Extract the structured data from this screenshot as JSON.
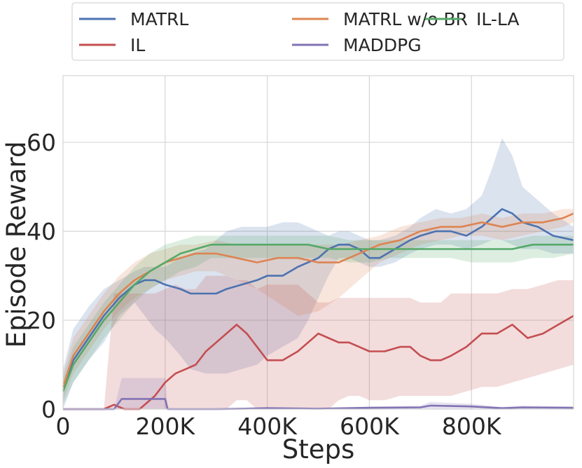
{
  "chart_data": {
    "type": "line",
    "title": "",
    "xlabel": "Steps",
    "ylabel": "Episode Reward",
    "xlim": [
      0,
      1000000
    ],
    "ylim": [
      0,
      75
    ],
    "xticks": [
      0,
      200000,
      400000,
      600000,
      800000
    ],
    "xtick_labels": [
      "0",
      "200K",
      "400K",
      "600K",
      "800K"
    ],
    "yticks": [
      0,
      20,
      40,
      60
    ],
    "ytick_labels": [
      "0",
      "20",
      "40",
      "60"
    ],
    "grid": true,
    "legend_position": "top-center",
    "series": [
      {
        "name": "MATRL",
        "color": "#4c72b0",
        "x": [
          0,
          20000,
          50000,
          80000,
          110000,
          140000,
          160000,
          180000,
          200000,
          230000,
          250000,
          280000,
          300000,
          320000,
          350000,
          380000,
          400000,
          430000,
          460000,
          480000,
          500000,
          520000,
          540000,
          560000,
          580000,
          600000,
          620000,
          650000,
          680000,
          700000,
          730000,
          760000,
          790000,
          820000,
          840000,
          860000,
          880000,
          900000,
          930000,
          960000,
          1000000
        ],
        "y": [
          5,
          11,
          16,
          21,
          25,
          28,
          29,
          29,
          28,
          27,
          26,
          26,
          26,
          27,
          28,
          29,
          30,
          30,
          32,
          33,
          34,
          36,
          37,
          37,
          36,
          34,
          34,
          36,
          38,
          39,
          40,
          40,
          39,
          41,
          43,
          45,
          44,
          42,
          41,
          39,
          38
        ],
        "band_upper": [
          9,
          18,
          23,
          27,
          29,
          31,
          32,
          32,
          32,
          34,
          35,
          36,
          38,
          40,
          41,
          41,
          41,
          42,
          42,
          41,
          40,
          39,
          40,
          40,
          39,
          38,
          38,
          39,
          41,
          43,
          45,
          44,
          45,
          48,
          54,
          61,
          57,
          50,
          47,
          44,
          41
        ],
        "band_lower": [
          0,
          6,
          11,
          15,
          21,
          24,
          21,
          18,
          16,
          12,
          9,
          8,
          8,
          8,
          9,
          10,
          12,
          14,
          16,
          20,
          25,
          30,
          34,
          34,
          33,
          32,
          32,
          33,
          35,
          36,
          37,
          37,
          36,
          37,
          38,
          38,
          37,
          36,
          36,
          35,
          35
        ]
      },
      {
        "name": "MATRL w/o BR",
        "color": "#dd8452",
        "x": [
          0,
          20000,
          50000,
          80000,
          110000,
          140000,
          170000,
          200000,
          230000,
          260000,
          300000,
          340000,
          380000,
          420000,
          460000,
          500000,
          540000,
          580000,
          620000,
          660000,
          700000,
          740000,
          780000,
          820000,
          860000,
          900000,
          940000,
          980000,
          1000000
        ],
        "y": [
          5,
          12,
          17,
          22,
          26,
          29,
          31,
          33,
          34,
          35,
          35,
          34,
          33,
          34,
          34,
          33,
          33,
          35,
          37,
          38,
          40,
          41,
          41,
          42,
          41,
          42,
          42,
          43,
          44
        ],
        "band_upper": [
          8,
          16,
          21,
          26,
          30,
          33,
          35,
          36,
          37,
          37,
          38,
          37,
          37,
          37,
          37,
          37,
          37,
          38,
          39,
          41,
          42,
          43,
          43,
          44,
          43,
          44,
          44,
          45,
          45
        ],
        "band_lower": [
          2,
          8,
          13,
          18,
          22,
          25,
          27,
          29,
          30,
          31,
          31,
          29,
          27,
          24,
          21,
          22,
          25,
          29,
          33,
          35,
          37,
          38,
          39,
          39,
          38,
          39,
          40,
          41,
          42
        ]
      },
      {
        "name": "IL-LA",
        "color": "#55a868",
        "x": [
          0,
          20000,
          50000,
          80000,
          110000,
          140000,
          170000,
          200000,
          230000,
          260000,
          290000,
          320000,
          360000,
          400000,
          440000,
          480000,
          520000,
          560000,
          600000,
          640000,
          680000,
          720000,
          760000,
          800000,
          840000,
          880000,
          920000,
          960000,
          1000000
        ],
        "y": [
          4,
          10,
          15,
          20,
          24,
          28,
          31,
          33,
          35,
          36,
          37,
          37,
          37,
          37,
          37,
          37,
          36,
          36,
          36,
          36,
          36,
          36,
          36,
          36,
          36,
          36,
          37,
          37,
          37
        ],
        "band_upper": [
          7,
          14,
          19,
          24,
          28,
          32,
          35,
          37,
          38,
          39,
          39,
          39,
          39,
          39,
          39,
          39,
          39,
          38,
          38,
          38,
          38,
          38,
          38,
          38,
          38,
          38,
          39,
          39,
          39
        ],
        "band_lower": [
          1,
          6,
          11,
          16,
          20,
          24,
          27,
          29,
          31,
          32,
          34,
          34,
          34,
          34,
          34,
          34,
          34,
          33,
          33,
          34,
          34,
          34,
          34,
          33,
          33,
          33,
          34,
          34,
          35
        ]
      },
      {
        "name": "IL",
        "color": "#c44e52",
        "x": [
          0,
          40000,
          60000,
          80000,
          100000,
          120000,
          150000,
          180000,
          200000,
          220000,
          240000,
          260000,
          280000,
          300000,
          320000,
          340000,
          360000,
          380000,
          400000,
          430000,
          460000,
          480000,
          500000,
          520000,
          540000,
          560000,
          580000,
          600000,
          630000,
          660000,
          680000,
          700000,
          720000,
          740000,
          760000,
          790000,
          820000,
          850000,
          880000,
          910000,
          940000,
          970000,
          1000000
        ],
        "y": [
          0,
          0,
          0,
          0,
          1,
          0,
          0,
          3,
          6,
          8,
          9,
          10,
          13,
          15,
          17,
          19,
          17,
          14,
          11,
          11,
          13,
          15,
          17,
          16,
          15,
          15,
          14,
          13,
          13,
          14,
          14,
          12,
          11,
          11,
          12,
          14,
          17,
          17,
          19,
          16,
          17,
          19,
          21
        ],
        "band_upper": [
          0,
          0,
          0,
          0,
          26,
          26,
          26,
          26,
          27,
          28,
          27,
          27,
          30,
          30,
          30,
          29,
          29,
          27,
          28,
          28,
          28,
          26,
          24,
          24,
          25,
          25,
          25,
          25,
          25,
          25,
          25,
          24,
          24,
          24,
          26,
          26,
          26,
          26,
          27,
          27,
          28,
          29,
          29
        ],
        "band_lower": [
          0,
          0,
          0,
          0,
          0,
          0,
          0,
          0,
          0,
          0,
          0,
          0,
          0,
          0,
          0,
          2,
          2,
          0,
          0,
          0,
          0,
          0,
          0,
          0,
          2,
          3,
          3,
          2,
          2,
          3,
          3,
          3,
          3,
          3,
          3,
          4,
          5,
          5,
          6,
          7,
          8,
          9,
          10
        ]
      },
      {
        "name": "MADDPG",
        "color": "#8172b3",
        "x": [
          0,
          100000,
          115000,
          200000,
          205000,
          300000,
          350000,
          400000,
          500000,
          600000,
          700000,
          720000,
          800000,
          860000,
          900000,
          1000000
        ],
        "y": [
          0,
          0,
          2.3,
          2.3,
          0,
          0,
          0.1,
          0.2,
          0.1,
          0.3,
          0.4,
          0.8,
          0.6,
          0.2,
          0.4,
          0.3
        ],
        "band_upper": [
          0,
          0,
          7,
          7,
          0,
          0,
          0.3,
          0.5,
          0.3,
          0.6,
          0.8,
          1.6,
          1.2,
          0.5,
          0.8,
          0.6
        ],
        "band_lower": [
          0,
          0,
          0,
          0,
          0,
          0,
          0,
          0,
          0,
          0,
          0,
          0,
          0,
          0,
          0,
          0
        ]
      }
    ]
  }
}
